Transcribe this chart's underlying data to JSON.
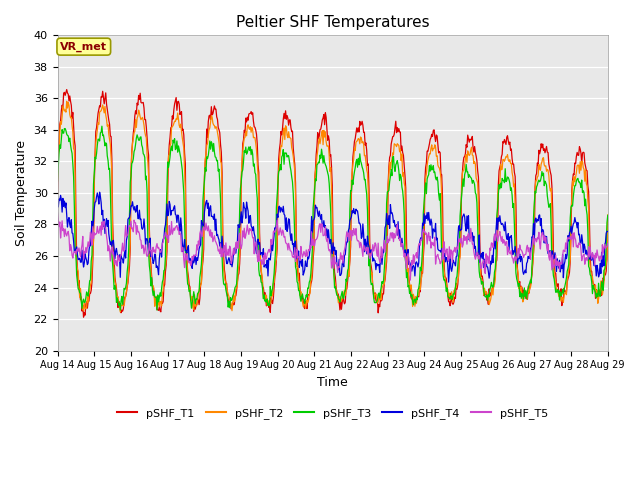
{
  "title": "Peltier SHF Temperatures",
  "xlabel": "Time",
  "ylabel": "Soil Temperature",
  "ylim": [
    20,
    40
  ],
  "bg_color": "#e8e8e8",
  "legend_labels": [
    "pSHF_T1",
    "pSHF_T2",
    "pSHF_T3",
    "pSHF_T4",
    "pSHF_T5"
  ],
  "line_colors": [
    "#dd0000",
    "#ff8800",
    "#00cc00",
    "#0000dd",
    "#cc44cc"
  ],
  "xtick_labels": [
    "Aug 14",
    "Aug 15",
    "Aug 16",
    "Aug 17",
    "Aug 18",
    "Aug 19",
    "Aug 20",
    "Aug 21",
    "Aug 22",
    "Aug 23",
    "Aug 24",
    "Aug 25",
    "Aug 26",
    "Aug 27",
    "Aug 28",
    "Aug 29"
  ],
  "annotation_text": "VR_met",
  "annotation_color": "#8b0000",
  "annotation_bg": "#ffff99"
}
